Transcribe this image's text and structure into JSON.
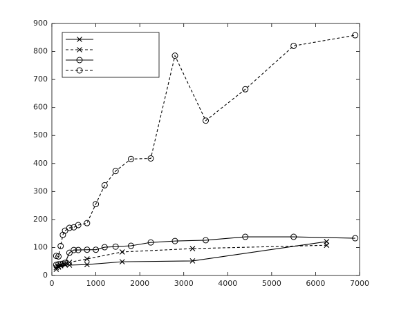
{
  "chart_data": {
    "type": "line",
    "xlim": [
      0,
      7000
    ],
    "xticks": [
      0,
      1000,
      2000,
      3000,
      4000,
      5000,
      6000,
      7000
    ],
    "ylim": [
      0,
      900
    ],
    "yticks": [
      0,
      100,
      200,
      300,
      400,
      500,
      600,
      700,
      800,
      900
    ],
    "legend": "upper-left",
    "series": [
      {
        "color": "#000000",
        "marker": "x",
        "dashed": false,
        "x": [
          100,
          150,
          200,
          300,
          400,
          800,
          1600,
          3200,
          6250
        ],
        "values": [
          28,
          32,
          35,
          38,
          37,
          39,
          49,
          52,
          121
        ]
      },
      {
        "color": "#000000",
        "marker": "x",
        "dashed": true,
        "x": [
          100,
          150,
          200,
          300,
          400,
          800,
          1600,
          3200,
          6250
        ],
        "values": [
          22,
          30,
          35,
          40,
          47,
          59,
          84,
          96,
          108
        ]
      },
      {
        "color": "#000000",
        "marker": "o",
        "dashed": false,
        "x": [
          100,
          150,
          200,
          250,
          300,
          400,
          500,
          600,
          800,
          1000,
          1200,
          1450,
          1800,
          2250,
          2800,
          3500,
          4400,
          5500,
          6900
        ],
        "values": [
          38,
          40,
          40,
          42,
          45,
          81,
          91,
          91,
          92,
          92,
          101,
          103,
          106,
          118,
          123,
          126,
          138,
          138,
          133
        ]
      },
      {
        "color": "#000000",
        "marker": "o",
        "dashed": true,
        "x": [
          100,
          150,
          200,
          250,
          300,
          400,
          500,
          600,
          800,
          1000,
          1200,
          1450,
          1800,
          2250,
          2800,
          3500,
          4400,
          5500,
          6900
        ],
        "values": [
          70,
          68,
          105,
          145,
          160,
          170,
          172,
          180,
          187,
          255,
          322,
          373,
          416,
          418,
          785,
          553,
          665,
          820,
          858
        ]
      }
    ]
  }
}
